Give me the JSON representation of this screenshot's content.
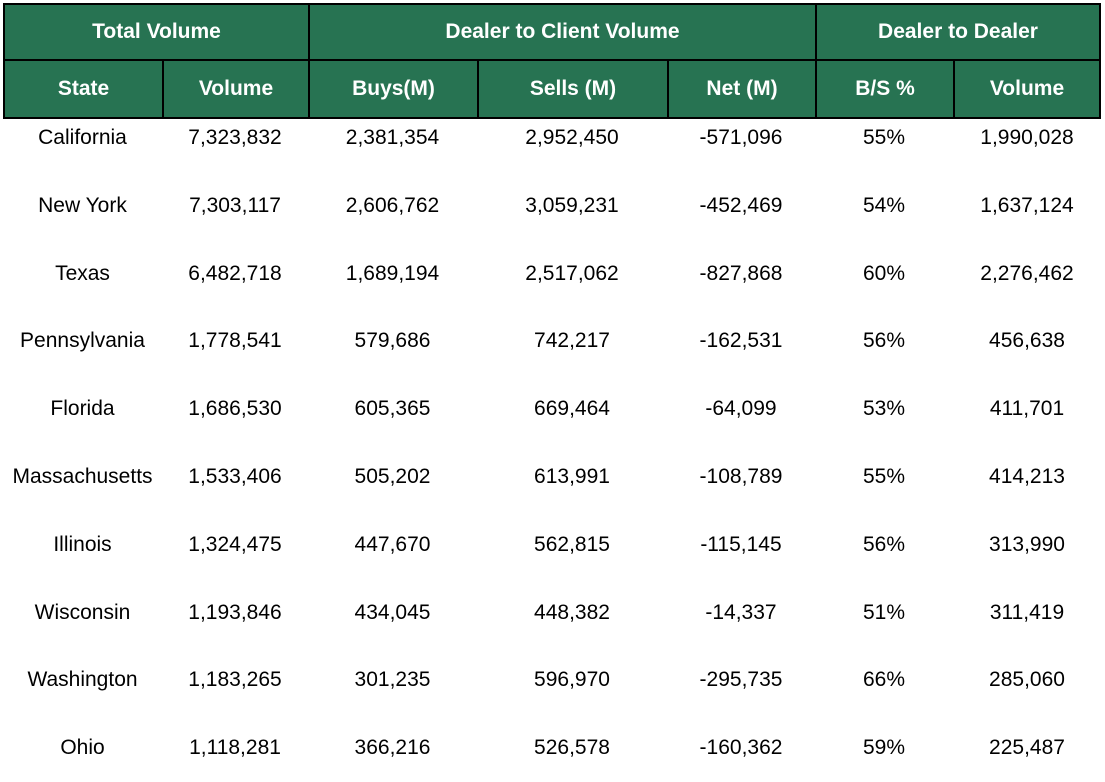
{
  "header": {
    "groups": [
      "Total Volume",
      "Dealer to Client Volume",
      "Dealer to Dealer"
    ],
    "columns": [
      "State",
      "Volume",
      "Buys(M)",
      "Sells (M)",
      "Net (M)",
      "B/S %",
      "Volume"
    ]
  },
  "table": {
    "rows": [
      [
        "California",
        "7,323,832",
        "2,381,354",
        "2,952,450",
        "-571,096",
        "55%",
        "1,990,028"
      ],
      [
        "New York",
        "7,303,117",
        "2,606,762",
        "3,059,231",
        "-452,469",
        "54%",
        "1,637,124"
      ],
      [
        "Texas",
        "6,482,718",
        "1,689,194",
        "2,517,062",
        "-827,868",
        "60%",
        "2,276,462"
      ],
      [
        "Pennsylvania",
        "1,778,541",
        "579,686",
        "742,217",
        "-162,531",
        "56%",
        "456,638"
      ],
      [
        "Florida",
        "1,686,530",
        "605,365",
        "669,464",
        "-64,099",
        "53%",
        "411,701"
      ],
      [
        "Massachusetts",
        "1,533,406",
        "505,202",
        "613,991",
        "-108,789",
        "55%",
        "414,213"
      ],
      [
        "Illinois",
        "1,324,475",
        "447,670",
        "562,815",
        "-115,145",
        "56%",
        "313,990"
      ],
      [
        "Wisconsin",
        "1,193,846",
        "434,045",
        "448,382",
        "-14,337",
        "51%",
        "311,419"
      ],
      [
        "Washington",
        "1,183,265",
        "301,235",
        "596,970",
        "-295,735",
        "66%",
        "285,060"
      ],
      [
        "Ohio",
        "1,118,281",
        "366,216",
        "526,578",
        "-160,362",
        "59%",
        "225,487"
      ]
    ]
  }
}
